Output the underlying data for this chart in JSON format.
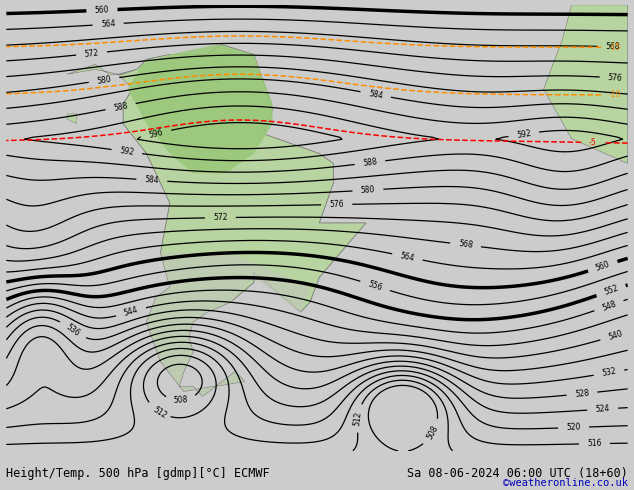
{
  "title_left": "Height/Temp. 500 hPa [gdmp][°C] ECMWF",
  "title_right": "Sa 08-06-2024 06:00 UTC (18+60)",
  "credit": "©weatheronline.co.uk",
  "fig_width": 6.34,
  "fig_height": 4.9,
  "dpi": 100,
  "bg_color": "#cccccc",
  "ocean_color": "#e0e0e0",
  "land_color": "#b8d4a0",
  "land_green": "#98c878",
  "land_gray": "#b0b0b0",
  "contour_z500": "#000000",
  "contour_temp_red": "#ff0000",
  "contour_temp_orange": "#ff8c00",
  "contour_temp_lgreen": "#90ee90",
  "contour_temp_cyan": "#00ccff",
  "title_fontsize": 8.5,
  "credit_fontsize": 7.5,
  "credit_color": "#0000bb"
}
